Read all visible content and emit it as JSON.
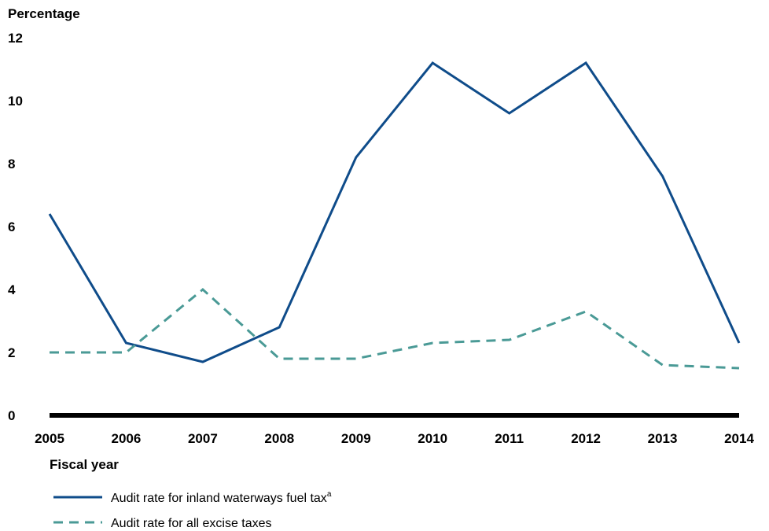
{
  "chart_data": {
    "type": "line",
    "ylabel": "Percentage",
    "xlabel": "Fiscal year",
    "x": [
      "2005",
      "2006",
      "2007",
      "2008",
      "2009",
      "2010",
      "2011",
      "2012",
      "2013",
      "2014"
    ],
    "ylim": [
      0,
      12
    ],
    "yticks": [
      "0",
      "2",
      "4",
      "6",
      "8",
      "10",
      "12"
    ],
    "grid": false,
    "legend_position": "bottom-left",
    "series": [
      {
        "name": "Audit rate for inland waterways fuel tax",
        "name_superscript": "a",
        "color": "#0f4c8a",
        "style": "solid",
        "values": [
          6.4,
          2.3,
          1.7,
          2.8,
          8.2,
          11.2,
          9.6,
          11.2,
          7.6,
          2.3
        ]
      },
      {
        "name": "Audit rate for all excise taxes",
        "color": "#4a9a96",
        "style": "dashed",
        "values": [
          2.0,
          2.0,
          4.0,
          1.8,
          1.8,
          2.3,
          2.4,
          3.3,
          1.6,
          1.5
        ]
      }
    ]
  }
}
